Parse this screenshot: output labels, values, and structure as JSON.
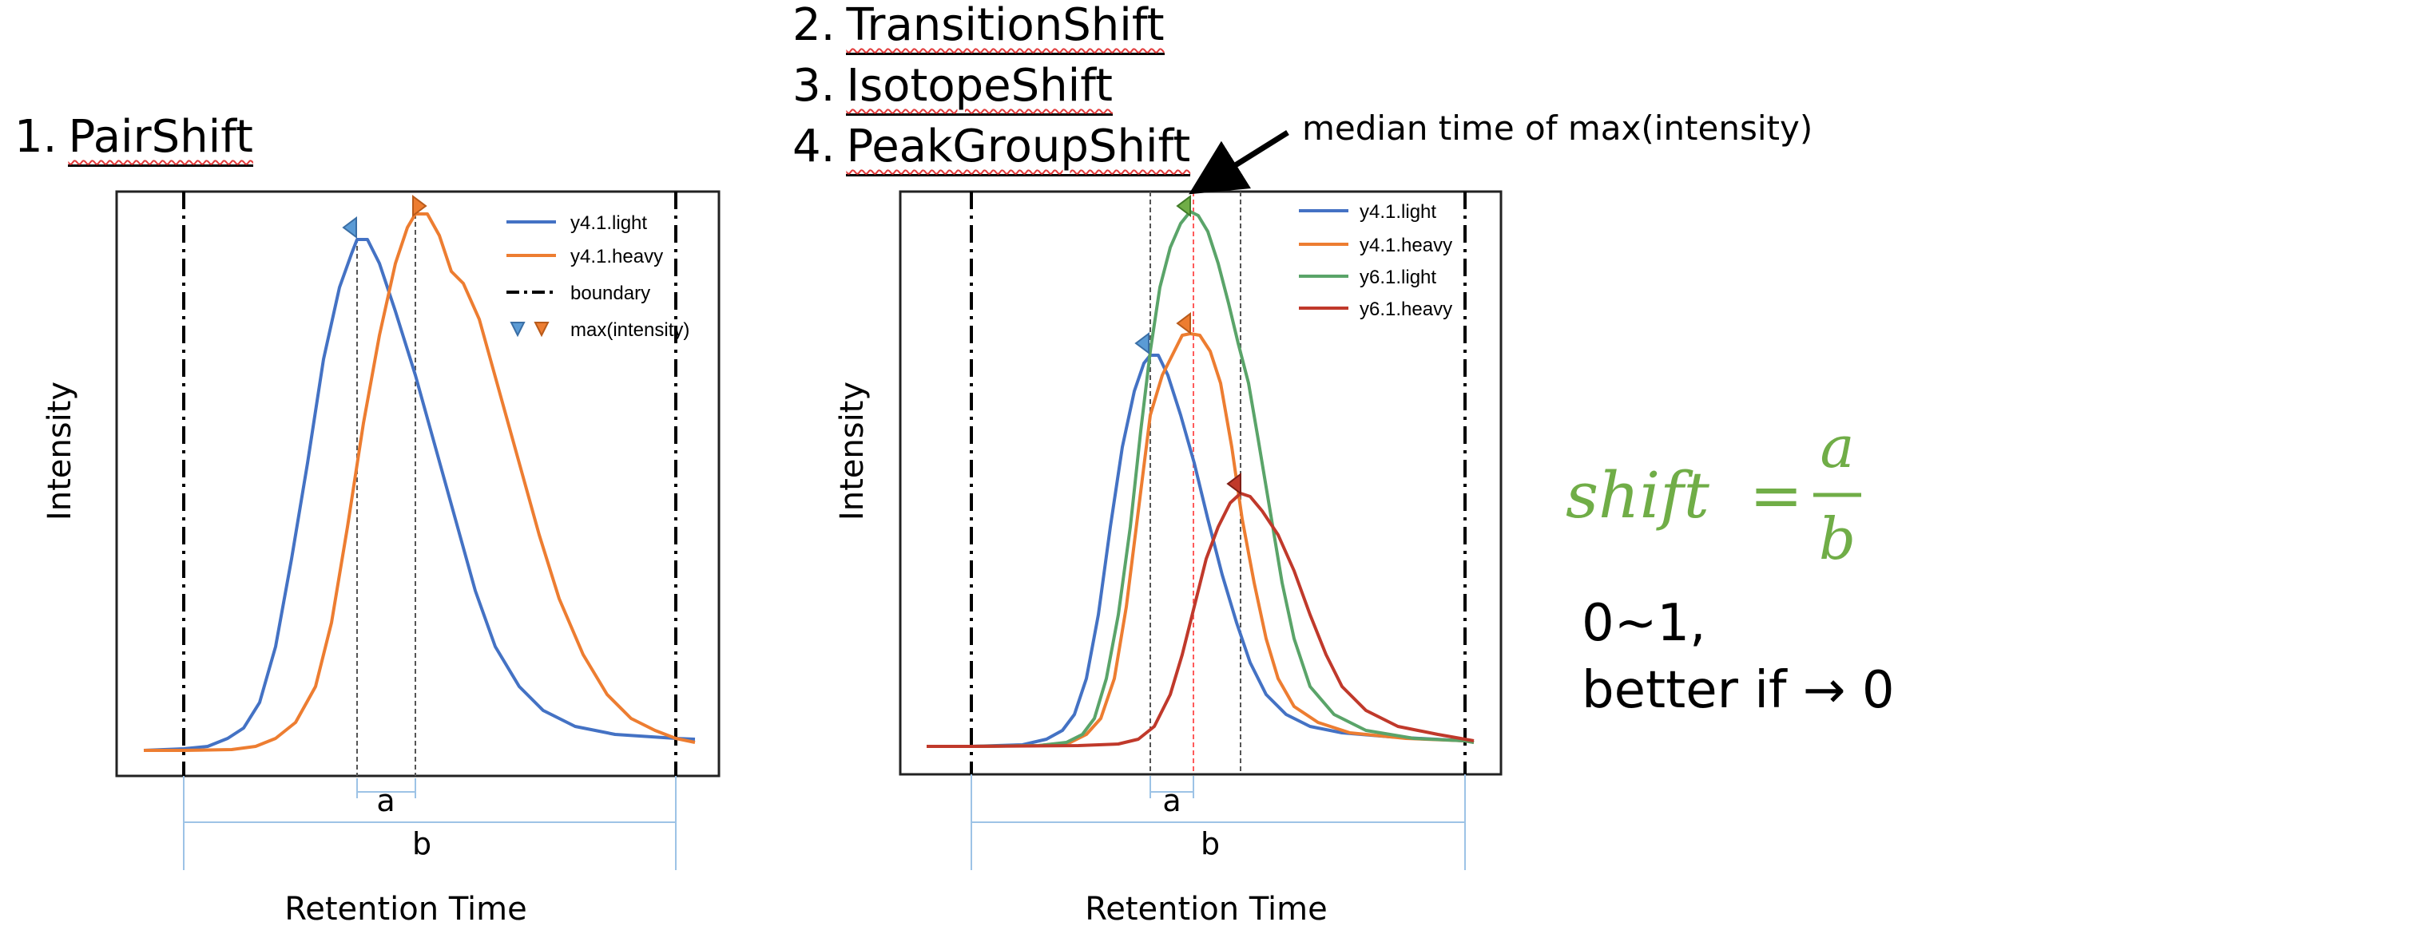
{
  "panels": [
    {
      "title_num": "1.",
      "title_name": "PairShift",
      "ylabel": "Intensity",
      "xlabel": "Retention Time",
      "legend": [
        {
          "label": "y4.1.light",
          "kind": "line",
          "color": "#4472c4"
        },
        {
          "label": "y4.1.heavy",
          "kind": "line",
          "color": "#ed7d31"
        },
        {
          "label": "boundary",
          "kind": "dashdot",
          "color": "#000000"
        },
        {
          "label": "max(intensity)",
          "kind": "markers",
          "colors": [
            "#5b9bd5",
            "#ed7d31"
          ]
        }
      ],
      "measure_a": "a",
      "measure_b": "b"
    },
    {
      "titles": [
        {
          "num": "2.",
          "name": "TransitionShift"
        },
        {
          "num": "3.",
          "name": "IsotopeShift"
        },
        {
          "num": "4.",
          "name": "PeakGroupShift"
        }
      ],
      "ylabel": "Intensity",
      "xlabel": "Retention Time",
      "legend": [
        {
          "label": "y4.1.light",
          "kind": "line",
          "color": "#4472c4"
        },
        {
          "label": "y4.1.heavy",
          "kind": "line",
          "color": "#ed7d31"
        },
        {
          "label": "y6.1.light",
          "kind": "line",
          "color": "#5aa469"
        },
        {
          "label": "y6.1.heavy",
          "kind": "line",
          "color": "#c0392b"
        }
      ],
      "measure_a": "a",
      "measure_b": "b",
      "annotation": "median time of max(intensity)"
    }
  ],
  "formula": {
    "lhs": "shift",
    "equals": "=",
    "numerator": "a",
    "denominator": "b",
    "color": "#70ad47"
  },
  "note": {
    "line1": "0~1,",
    "line2": "better if → 0"
  }
}
